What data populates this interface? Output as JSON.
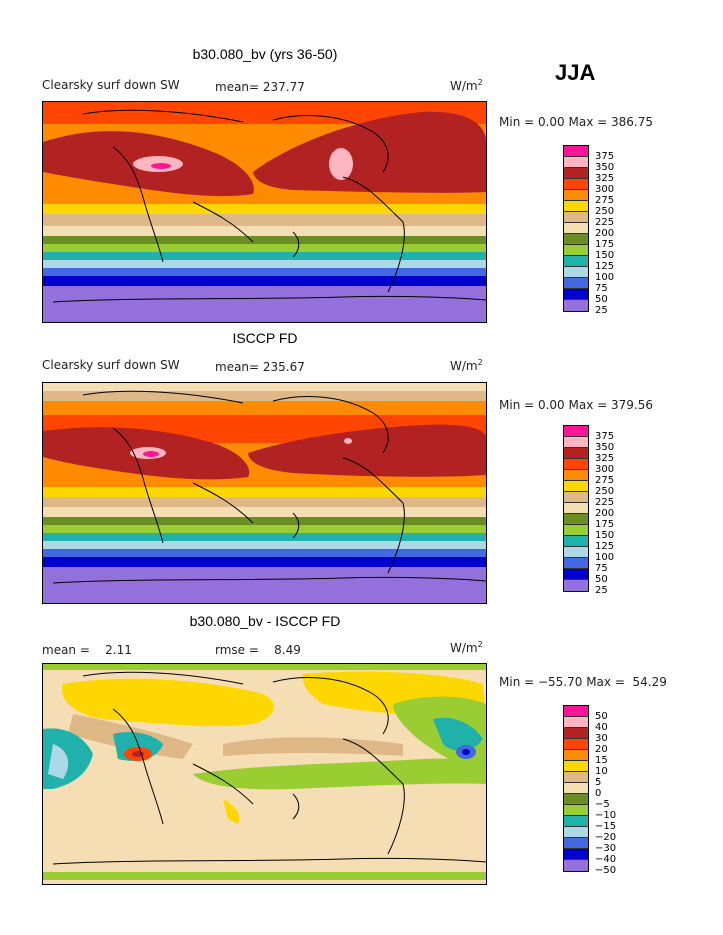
{
  "season": "JJA",
  "panels": [
    {
      "title": "b30.080_bv (yrs 36-50)",
      "subtitle": "Clearsky surf down SW",
      "stat": "mean= 237.77",
      "units_base": "W/m",
      "units_exp": "2",
      "range": "Min =   0.00 Max = 386.75"
    },
    {
      "title": "ISCCP FD",
      "subtitle": "Clearsky surf down SW",
      "stat": "mean= 235.67",
      "units_base": "W/m",
      "units_exp": "2",
      "range": "Min =   0.00 Max = 379.56"
    },
    {
      "title": "b30.080_bv - ISCCP FD",
      "subtitle": "mean =    2.11",
      "stat": "rmse =    8.49",
      "units_base": "W/m",
      "units_exp": "2",
      "range": "Min = −55.70 Max =  54.29"
    }
  ],
  "colorbar_abs": {
    "levels": [
      "375",
      "350",
      "325",
      "300",
      "275",
      "250",
      "225",
      "200",
      "175",
      "150",
      "125",
      "100",
      "75",
      "50",
      "25"
    ],
    "colors": [
      "#ff1493",
      "#ffb6c1",
      "#b22222",
      "#ff4500",
      "#ff8c00",
      "#ffd700",
      "#deb887",
      "#f5deb3",
      "#6b8e23",
      "#9acd32",
      "#20b2aa",
      "#add8e6",
      "#4169e1",
      "#0000cd",
      "#9370db"
    ]
  },
  "colorbar_diff": {
    "levels": [
      "50",
      "40",
      "30",
      "20",
      "15",
      "10",
      "5",
      "0",
      "−5",
      "−10",
      "−15",
      "−20",
      "−30",
      "−40",
      "−50"
    ],
    "colors": [
      "#ff1493",
      "#ffb6c1",
      "#b22222",
      "#ff4500",
      "#ff8c00",
      "#ffd700",
      "#deb887",
      "#f5deb3",
      "#6b8e23",
      "#9acd32",
      "#20b2aa",
      "#add8e6",
      "#4169e1",
      "#0000cd",
      "#9370db"
    ]
  }
}
